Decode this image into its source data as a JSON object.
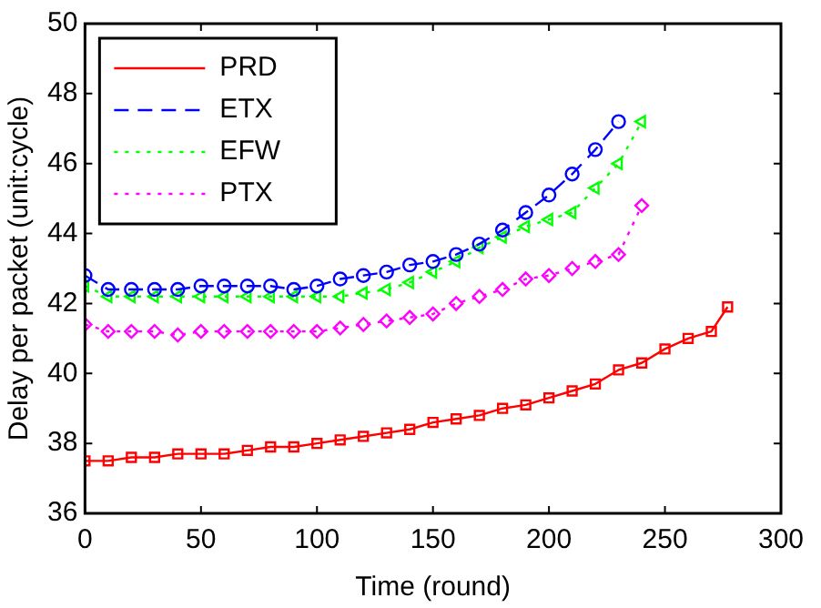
{
  "chart_data": {
    "type": "line",
    "xlabel": "Time (round)",
    "ylabel": "Delay per packet (unit:cycle)",
    "xlim": [
      0,
      300
    ],
    "xticks": [
      0,
      50,
      100,
      150,
      200,
      250,
      300
    ],
    "ylim": [
      36,
      50
    ],
    "yticks": [
      36,
      38,
      40,
      42,
      44,
      46,
      48,
      50
    ],
    "grid": false,
    "legend": "top left",
    "series": [
      {
        "name": "PRD",
        "color": "#ff0000",
        "marker": "square",
        "line_style": "solid",
        "x": [
          0,
          10,
          20,
          30,
          40,
          50,
          60,
          70,
          80,
          90,
          100,
          110,
          120,
          130,
          140,
          150,
          160,
          170,
          180,
          190,
          200,
          210,
          220,
          230,
          240,
          250,
          260,
          270,
          277
        ],
        "values": [
          37.5,
          37.5,
          37.6,
          37.6,
          37.7,
          37.7,
          37.7,
          37.8,
          37.9,
          37.9,
          38.0,
          38.1,
          38.2,
          38.3,
          38.4,
          38.6,
          38.7,
          38.8,
          39.0,
          39.1,
          39.3,
          39.5,
          39.7,
          40.1,
          40.3,
          40.7,
          41.0,
          41.2,
          41.9
        ]
      },
      {
        "name": "ETX",
        "color": "#0000ff",
        "marker": "circle",
        "line_style": "dashed",
        "x": [
          0,
          10,
          20,
          30,
          40,
          50,
          60,
          70,
          80,
          90,
          100,
          110,
          120,
          130,
          140,
          150,
          160,
          170,
          180,
          190,
          200,
          210,
          220,
          230
        ],
        "values": [
          42.8,
          42.4,
          42.4,
          42.4,
          42.4,
          42.5,
          42.5,
          42.5,
          42.5,
          42.4,
          42.5,
          42.7,
          42.8,
          42.9,
          43.1,
          43.2,
          43.4,
          43.7,
          44.1,
          44.6,
          45.1,
          45.7,
          46.4,
          47.2
        ]
      },
      {
        "name": "EFW",
        "color": "#00ff00",
        "marker": "triangle",
        "line_style": "dotted",
        "x": [
          0,
          10,
          20,
          30,
          40,
          50,
          60,
          70,
          80,
          90,
          100,
          110,
          120,
          130,
          140,
          150,
          160,
          170,
          180,
          190,
          200,
          210,
          220,
          230,
          240
        ],
        "values": [
          42.5,
          42.2,
          42.2,
          42.2,
          42.2,
          42.2,
          42.2,
          42.2,
          42.2,
          42.2,
          42.2,
          42.2,
          42.3,
          42.4,
          42.6,
          42.9,
          43.2,
          43.6,
          43.9,
          44.2,
          44.4,
          44.6,
          45.3,
          46.0,
          47.2
        ]
      },
      {
        "name": "PTX",
        "color": "#ff00ff",
        "marker": "diamond",
        "line_style": "dotted",
        "x": [
          0,
          10,
          20,
          30,
          40,
          50,
          60,
          70,
          80,
          90,
          100,
          110,
          120,
          130,
          140,
          150,
          160,
          170,
          180,
          190,
          200,
          210,
          220,
          230,
          240
        ],
        "values": [
          41.4,
          41.2,
          41.2,
          41.2,
          41.1,
          41.2,
          41.2,
          41.2,
          41.2,
          41.2,
          41.2,
          41.3,
          41.4,
          41.5,
          41.6,
          41.7,
          42.0,
          42.2,
          42.4,
          42.7,
          42.8,
          43.0,
          43.2,
          43.4,
          44.8
        ]
      }
    ]
  }
}
